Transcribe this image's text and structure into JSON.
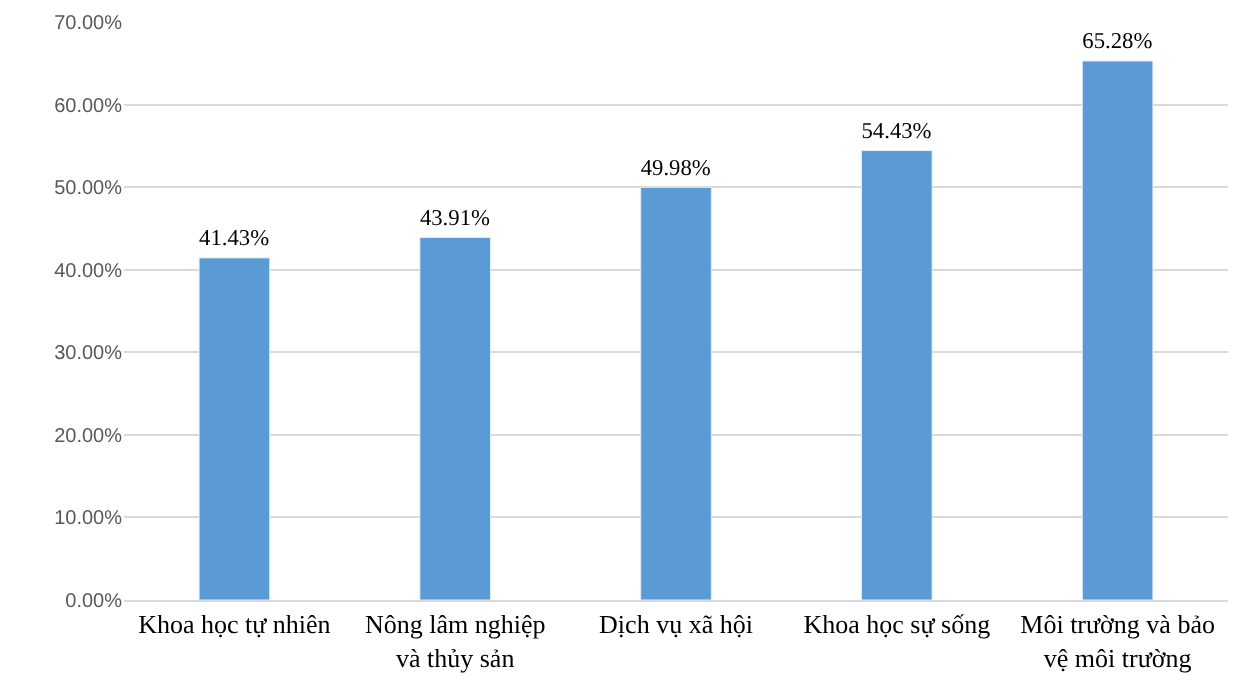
{
  "chart_data": {
    "type": "bar",
    "categories": [
      "Khoa học tự nhiên",
      "Nông lâm nghiệp và thủy sản",
      "Dịch vụ xã hội",
      "Khoa học sự sống",
      "Môi trường và bảo vệ môi trường"
    ],
    "values": [
      41.43,
      43.91,
      49.98,
      54.43,
      65.28
    ],
    "value_labels": [
      "41.43%",
      "43.91%",
      "49.98%",
      "54.43%",
      "65.28%"
    ],
    "color": "#5b9bd5",
    "ylim": [
      0,
      70
    ],
    "yticks": [
      {
        "value": 0,
        "label": "0.00%"
      },
      {
        "value": 10,
        "label": "10.00%"
      },
      {
        "value": 20,
        "label": "20.00%"
      },
      {
        "value": 30,
        "label": "30.00%"
      },
      {
        "value": 40,
        "label": "40.00%"
      },
      {
        "value": 50,
        "label": "50.00%"
      },
      {
        "value": 60,
        "label": "60.00%"
      },
      {
        "value": 70,
        "label": "70.00%"
      }
    ],
    "grid": "y"
  }
}
